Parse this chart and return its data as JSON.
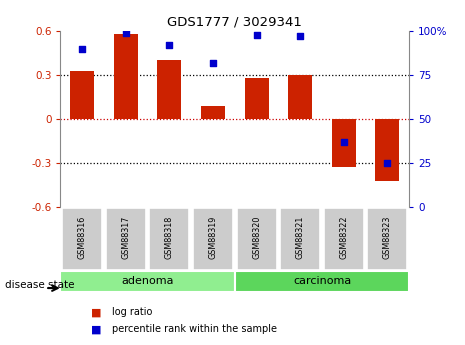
{
  "title": "GDS1777 / 3029341",
  "samples": [
    "GSM88316",
    "GSM88317",
    "GSM88318",
    "GSM88319",
    "GSM88320",
    "GSM88321",
    "GSM88322",
    "GSM88323"
  ],
  "log_ratio": [
    0.33,
    0.58,
    0.4,
    0.09,
    0.28,
    0.3,
    -0.33,
    -0.42
  ],
  "percentile_rank": [
    90,
    99,
    92,
    82,
    98,
    97,
    37,
    25
  ],
  "groups": [
    {
      "label": "adenoma",
      "start": 0,
      "end": 4,
      "color": "#90ee90"
    },
    {
      "label": "carcinoma",
      "start": 4,
      "end": 8,
      "color": "#5cd65c"
    }
  ],
  "bar_color": "#cc2200",
  "dot_color": "#0000cc",
  "ylim_left": [
    -0.6,
    0.6
  ],
  "ylim_right": [
    0,
    100
  ],
  "yticks_left": [
    -0.6,
    -0.3,
    0.0,
    0.3,
    0.6
  ],
  "ytick_labels_left": [
    "-0.6",
    "-0.3",
    "0",
    "0.3",
    "0.6"
  ],
  "yticks_right": [
    0,
    25,
    50,
    75,
    100
  ],
  "ytick_labels_right": [
    "0",
    "25",
    "50",
    "75",
    "100%"
  ],
  "hlines": [
    -0.3,
    0.0,
    0.3
  ],
  "legend_items": [
    {
      "label": "log ratio",
      "color": "#cc2200"
    },
    {
      "label": "percentile rank within the sample",
      "color": "#0000cc"
    }
  ],
  "disease_state_label": "disease state",
  "background_color": "#ffffff",
  "box_color": "#cccccc"
}
